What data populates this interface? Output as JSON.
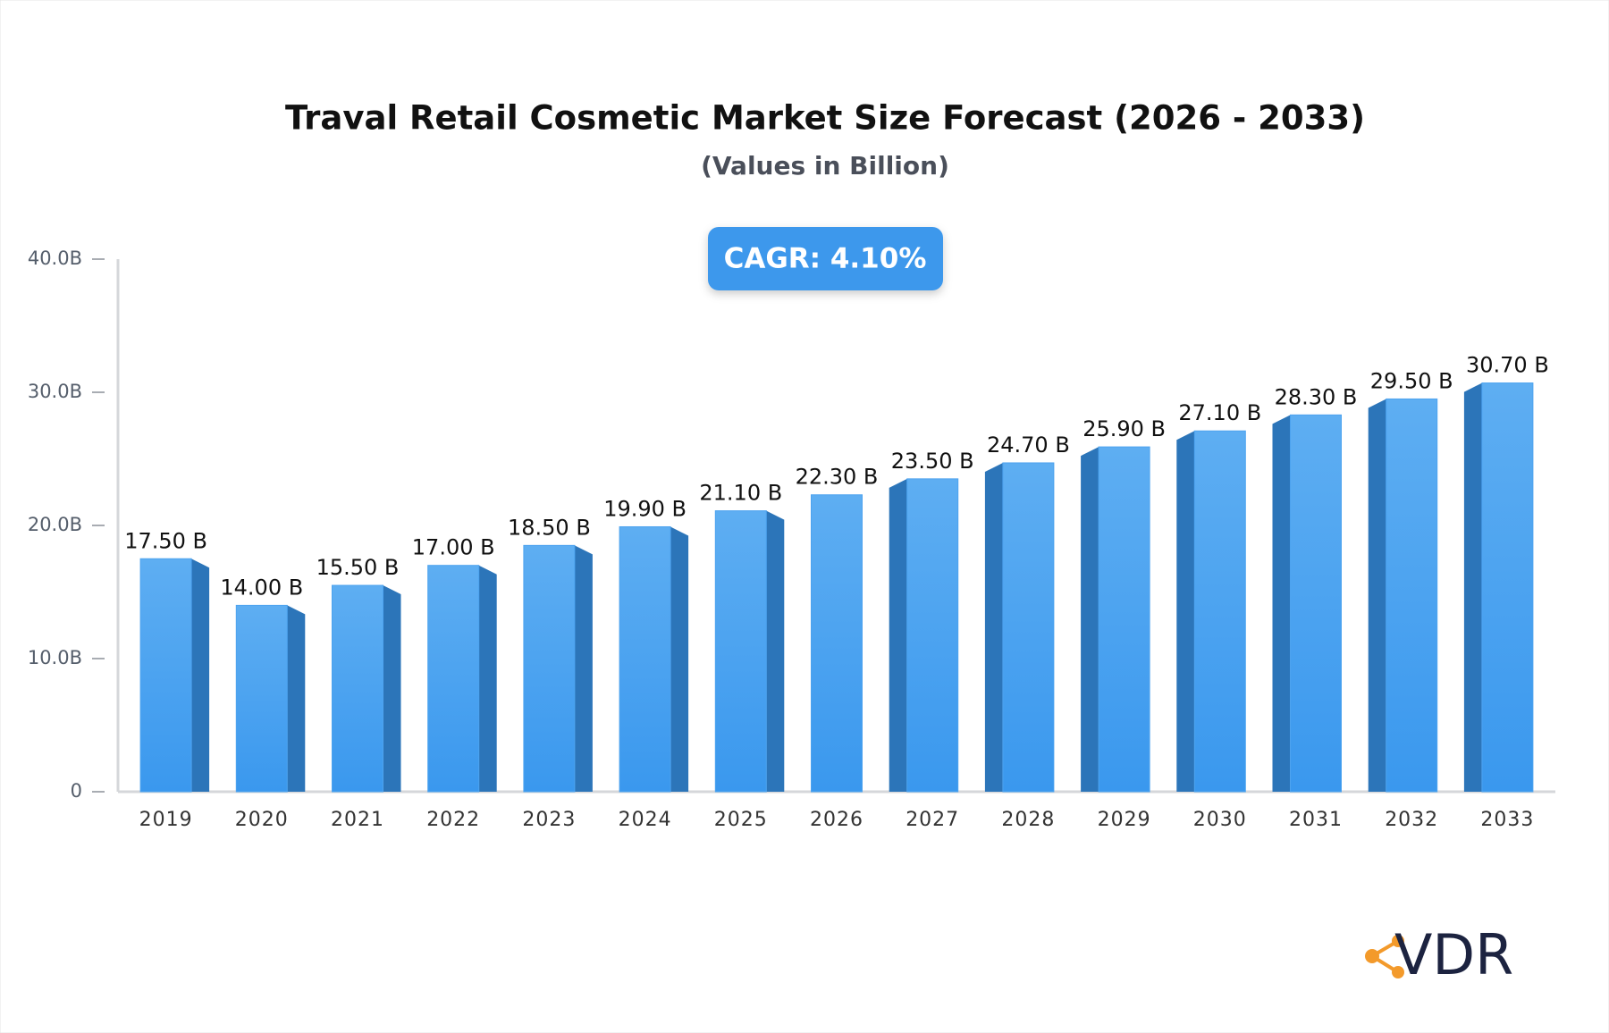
{
  "chart_data": {
    "type": "bar",
    "title": "Traval Retail Cosmetic Market Size Forecast (2026 - 2033)",
    "subtitle": "(Values in Billion)",
    "annotation": "CAGR: 4.10%",
    "categories": [
      "2019",
      "2020",
      "2021",
      "2022",
      "2023",
      "2024",
      "2025",
      "2026",
      "2027",
      "2028",
      "2029",
      "2030",
      "2031",
      "2032",
      "2033"
    ],
    "values": [
      17.5,
      14.0,
      15.5,
      17.0,
      18.5,
      19.9,
      21.1,
      22.3,
      23.5,
      24.7,
      25.9,
      27.1,
      28.3,
      29.5,
      30.7
    ],
    "value_labels": [
      "17.50 B",
      "14.00 B",
      "15.50 B",
      "17.00 B",
      "18.50 B",
      "19.90 B",
      "21.10 B",
      "22.30 B",
      "23.50 B",
      "24.70 B",
      "25.90 B",
      "27.10 B",
      "28.30 B",
      "29.50 B",
      "30.70 B"
    ],
    "color": "#4da3ef",
    "ylim": [
      0,
      40
    ],
    "yticks": [
      0,
      {
        "value": 10,
        "label": "10.0B"
      },
      {
        "value": 20,
        "label": "20.0B"
      },
      {
        "value": 30,
        "label": "30.0B"
      },
      {
        "value": 40,
        "label": "40.0B"
      }
    ]
  },
  "logo": {
    "text": "VDR"
  }
}
